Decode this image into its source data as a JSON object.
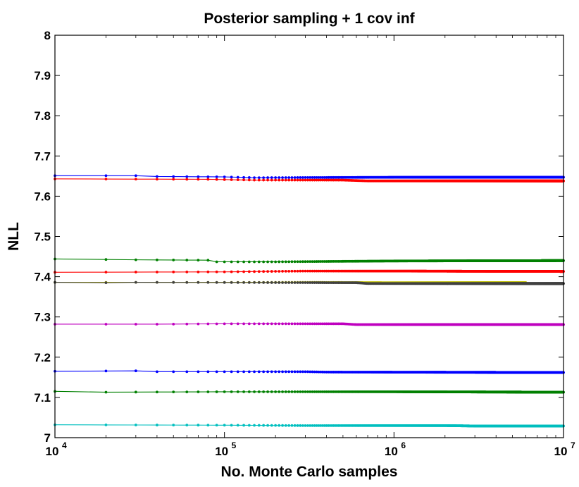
{
  "chart_data": {
    "type": "line",
    "title": "Posterior sampling + 1 cov inf",
    "xlabel": "No. Monte Carlo samples",
    "ylabel": "NLL",
    "x_scale": "log",
    "xlim": [
      10000,
      10000000
    ],
    "ylim": [
      7.0,
      8.0
    ],
    "x_ticks": [
      {
        "value": 10000,
        "base": "10",
        "exp": "4"
      },
      {
        "value": 100000,
        "base": "10",
        "exp": "5"
      },
      {
        "value": 1000000,
        "base": "10",
        "exp": "6"
      },
      {
        "value": 10000000,
        "base": "10",
        "exp": "7"
      }
    ],
    "y_ticks": [
      "7",
      "7.1",
      "7.2",
      "7.3",
      "7.4",
      "7.5",
      "7.6",
      "7.7",
      "7.8",
      "7.9",
      "8"
    ],
    "grid": false,
    "legend": null,
    "series": [
      {
        "color": "#0000ff",
        "points": [
          [
            10000,
            7.651
          ],
          [
            30000,
            7.651
          ],
          [
            40000,
            7.649
          ],
          [
            100000,
            7.648
          ],
          [
            150000,
            7.646
          ],
          [
            1000000,
            7.647
          ],
          [
            10000000,
            7.647
          ]
        ]
      },
      {
        "color": "#ff0000",
        "points": [
          [
            10000,
            7.643
          ],
          [
            80000,
            7.642
          ],
          [
            150000,
            7.64
          ],
          [
            500000,
            7.64
          ],
          [
            700000,
            7.638
          ],
          [
            10000000,
            7.638
          ]
        ]
      },
      {
        "color": "#008000",
        "points": [
          [
            10000,
            7.444
          ],
          [
            30000,
            7.442
          ],
          [
            80000,
            7.441
          ],
          [
            90000,
            7.437
          ],
          [
            200000,
            7.437
          ],
          [
            1000000,
            7.439
          ],
          [
            10000000,
            7.44
          ]
        ]
      },
      {
        "color": "#ff0000",
        "points": [
          [
            10000,
            7.411
          ],
          [
            100000,
            7.412
          ],
          [
            300000,
            7.414
          ],
          [
            1000000,
            7.414
          ],
          [
            10000000,
            7.413
          ]
        ]
      },
      {
        "color": "#bfbf00",
        "points": [
          [
            10000,
            7.386
          ],
          [
            300000,
            7.386
          ],
          [
            1000000,
            7.385
          ],
          [
            6000000,
            7.385
          ]
        ]
      },
      {
        "color": "#404040",
        "points": [
          [
            10000,
            7.386
          ],
          [
            20000,
            7.385
          ],
          [
            30000,
            7.386
          ],
          [
            600000,
            7.385
          ],
          [
            700000,
            7.383
          ],
          [
            10000000,
            7.383
          ]
        ]
      },
      {
        "color": "#bf00bf",
        "points": [
          [
            10000,
            7.282
          ],
          [
            40000,
            7.282
          ],
          [
            100000,
            7.283
          ],
          [
            500000,
            7.283
          ],
          [
            600000,
            7.281
          ],
          [
            10000000,
            7.281
          ]
        ]
      },
      {
        "color": "#0000ff",
        "points": [
          [
            10000,
            7.165
          ],
          [
            30000,
            7.166
          ],
          [
            40000,
            7.164
          ],
          [
            300000,
            7.164
          ],
          [
            400000,
            7.163
          ],
          [
            10000000,
            7.162
          ]
        ]
      },
      {
        "color": "#008000",
        "points": [
          [
            10000,
            7.115
          ],
          [
            20000,
            7.113
          ],
          [
            100000,
            7.114
          ],
          [
            1000000,
            7.114
          ],
          [
            10000000,
            7.113
          ]
        ]
      },
      {
        "color": "#00bfbf",
        "points": [
          [
            10000,
            7.032
          ],
          [
            100000,
            7.031
          ],
          [
            300000,
            7.03
          ],
          [
            2000000,
            7.03
          ],
          [
            3000000,
            7.029
          ],
          [
            10000000,
            7.029
          ]
        ]
      }
    ]
  }
}
